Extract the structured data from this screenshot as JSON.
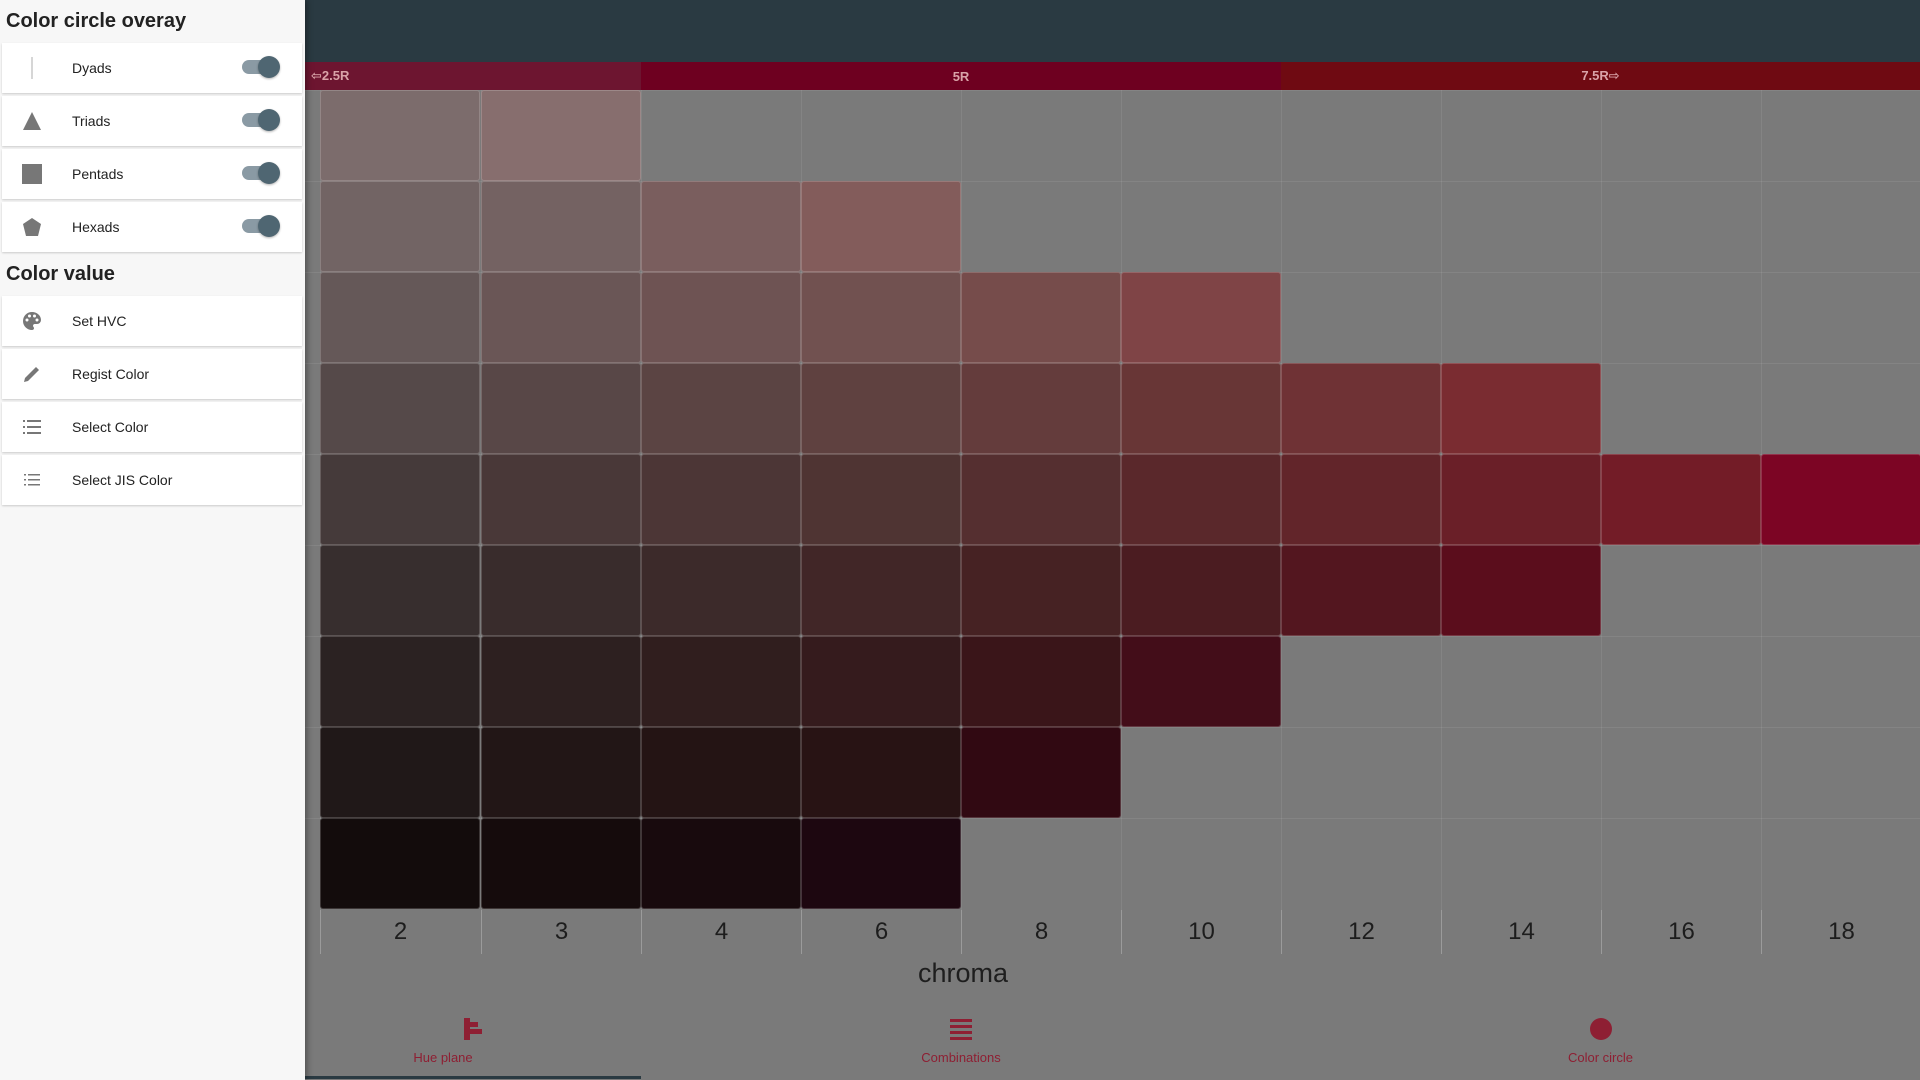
{
  "drawer": {
    "overlay_title": "Color circle overay",
    "overlay_items": [
      {
        "label": "Dyads",
        "icon": "line-icon",
        "toggled": true
      },
      {
        "label": "Triads",
        "icon": "triangle-icon",
        "toggled": true
      },
      {
        "label": "Pentads",
        "icon": "square-icon",
        "toggled": true
      },
      {
        "label": "Hexads",
        "icon": "pentagon-icon",
        "toggled": true
      }
    ],
    "value_title": "Color value",
    "value_items": [
      {
        "label": "Set HVC",
        "icon": "palette-icon"
      },
      {
        "label": "Regist Color",
        "icon": "pencil-icon"
      },
      {
        "label": "Select Color",
        "icon": "list-icon"
      },
      {
        "label": "Select JIS Color",
        "icon": "list-icon"
      }
    ]
  },
  "hue_strip": {
    "left": "⇦2.5R",
    "center": "5R",
    "right": "7.5R⇨",
    "colors": [
      "#6d1530",
      "#6e0020",
      "#6f0a12"
    ]
  },
  "axis": {
    "ticks": [
      "2",
      "3",
      "4",
      "6",
      "8",
      "10",
      "12",
      "14",
      "16",
      "18"
    ],
    "label": "chroma"
  },
  "grid": {
    "rows": [
      {
        "count": 2,
        "colors": [
          "#7c6c6c",
          "#876e6e"
        ]
      },
      {
        "count": 4,
        "colors": [
          "#726464",
          "#746262",
          "#7a5e5e",
          "#835c5b"
        ]
      },
      {
        "count": 6,
        "colors": [
          "#655858",
          "#6a5656",
          "#6e5353",
          "#715150",
          "#764c4b",
          "#7f4446"
        ]
      },
      {
        "count": 8,
        "colors": [
          "#554949",
          "#584747",
          "#5b4443",
          "#5f4140",
          "#643c3c",
          "#683636",
          "#6f3235",
          "#7a2c31"
        ]
      },
      {
        "count": 10,
        "colors": [
          "#453a3a",
          "#493838",
          "#4c3636",
          "#4f3433",
          "#552f30",
          "#5a282b",
          "#62252a",
          "#6a1f28",
          "#731c27",
          "#7c0524"
        ]
      },
      {
        "count": 8,
        "colors": [
          "#372e2e",
          "#392c2c",
          "#3c2a2a",
          "#412627",
          "#462223",
          "#4b1c21",
          "#53161f",
          "#5b0d1c"
        ]
      },
      {
        "count": 6,
        "colors": [
          "#2b2222",
          "#2d2020",
          "#301e1e",
          "#351b1d",
          "#3a1519",
          "#430d19"
        ]
      },
      {
        "count": 5,
        "colors": [
          "#201818",
          "#221616",
          "#241414",
          "#281314",
          "#310912"
        ]
      },
      {
        "count": 4,
        "colors": [
          "#130c0c",
          "#150b0c",
          "#180a0d",
          "#1d0710"
        ]
      }
    ]
  },
  "bottom_nav": {
    "items": [
      {
        "label": "Hue plane",
        "icon": "hue-plane-icon"
      },
      {
        "label": "Combinations",
        "icon": "combinations-icon"
      },
      {
        "label": "Color circle",
        "icon": "color-circle-icon"
      }
    ],
    "accent": "#8e1f33"
  }
}
